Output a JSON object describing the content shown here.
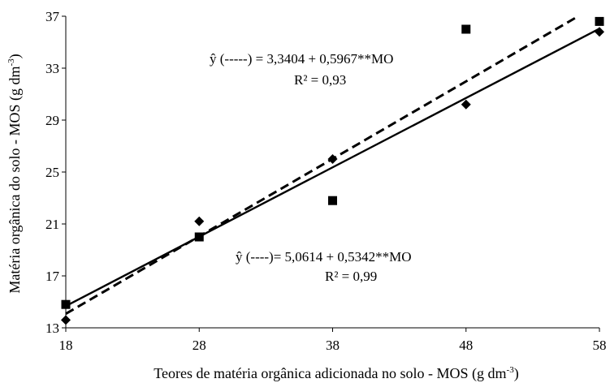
{
  "chart_data": {
    "type": "scatter",
    "xlabel_main": "Teores de matéria orgânica adicionada no solo - MOS (g dm",
    "xlabel_sup": "-3",
    "xlabel_end": ")",
    "ylabel_main": "Matéria orgânica do solo - MOS (g dm",
    "ylabel_sup": "-3",
    "ylabel_end": ")",
    "xlim": [
      18,
      58
    ],
    "ylim": [
      13,
      37
    ],
    "x_ticks": [
      18,
      28,
      38,
      48,
      58
    ],
    "y_ticks": [
      13,
      17,
      21,
      25,
      29,
      33,
      37
    ],
    "series": [
      {
        "marker": "diamond",
        "fit_line": "solid",
        "points": [
          {
            "x": 18,
            "y": 13.6
          },
          {
            "x": 28,
            "y": 21.2
          },
          {
            "x": 38,
            "y": 26.0
          },
          {
            "x": 48,
            "y": 30.2
          },
          {
            "x": 58,
            "y": 35.8
          }
        ],
        "fit": {
          "intercept": 5.0614,
          "slope": 0.5342
        },
        "equation": "ŷ (----)= 5,0614 + 0,5342**MO",
        "r2": "R² = 0,99"
      },
      {
        "marker": "square",
        "fit_line": "dashed",
        "points": [
          {
            "x": 18,
            "y": 14.8
          },
          {
            "x": 28,
            "y": 20.0
          },
          {
            "x": 38,
            "y": 22.8
          },
          {
            "x": 48,
            "y": 36.0
          },
          {
            "x": 58,
            "y": 36.6
          }
        ],
        "fit": {
          "intercept": 3.3404,
          "slope": 0.5967
        },
        "equation": "ŷ (-----)  = 3,3404 + 0,5967**MO",
        "r2": "R² = 0,93"
      }
    ],
    "grid": false,
    "legend": "none"
  }
}
